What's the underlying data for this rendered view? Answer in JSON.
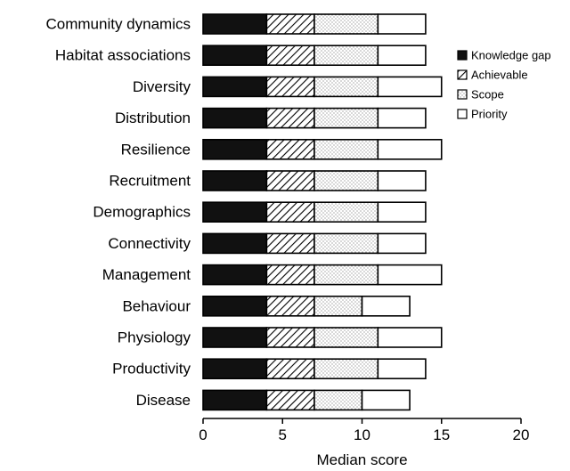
{
  "chart_data": {
    "type": "bar",
    "orientation": "horizontal",
    "stacked": true,
    "categories": [
      "Community dynamics",
      "Habitat associations",
      "Diversity",
      "Distribution",
      "Resilience",
      "Recruitment",
      "Demographics",
      "Connectivity",
      "Management",
      "Behaviour",
      "Physiology",
      "Productivity",
      "Disease"
    ],
    "series": [
      {
        "name": "Knowledge gap",
        "values": [
          4,
          4,
          4,
          4,
          4,
          4,
          4,
          4,
          4,
          4,
          4,
          4,
          4
        ],
        "pattern": "solid"
      },
      {
        "name": "Achievable",
        "values": [
          3,
          3,
          3,
          3,
          3,
          3,
          3,
          3,
          3,
          3,
          3,
          3,
          3
        ],
        "pattern": "diagonal-hatch"
      },
      {
        "name": "Scope",
        "values": [
          4,
          4,
          4,
          4,
          4,
          4,
          4,
          4,
          4,
          3,
          4,
          4,
          3
        ],
        "pattern": "dotted"
      },
      {
        "name": "Priority",
        "values": [
          3,
          3,
          4,
          3,
          4,
          3,
          3,
          3,
          4,
          3,
          4,
          3,
          3
        ],
        "pattern": "empty"
      }
    ],
    "xlabel": "Median score",
    "ylabel": "",
    "title": "",
    "xlim": [
      0,
      20
    ],
    "xticks": [
      "0",
      "5",
      "10",
      "15",
      "20"
    ],
    "grid": false,
    "legend_position": "right"
  }
}
